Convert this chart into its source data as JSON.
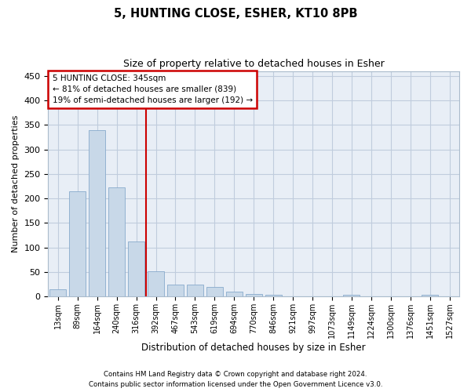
{
  "title": "5, HUNTING CLOSE, ESHER, KT10 8PB",
  "subtitle": "Size of property relative to detached houses in Esher",
  "xlabel": "Distribution of detached houses by size in Esher",
  "ylabel": "Number of detached properties",
  "footnote1": "Contains HM Land Registry data © Crown copyright and database right 2024.",
  "footnote2": "Contains public sector information licensed under the Open Government Licence v3.0.",
  "categories": [
    "13sqm",
    "89sqm",
    "164sqm",
    "240sqm",
    "316sqm",
    "392sqm",
    "467sqm",
    "543sqm",
    "619sqm",
    "694sqm",
    "770sqm",
    "846sqm",
    "921sqm",
    "997sqm",
    "1073sqm",
    "1149sqm",
    "1224sqm",
    "1300sqm",
    "1376sqm",
    "1451sqm",
    "1527sqm"
  ],
  "values": [
    15,
    215,
    340,
    222,
    112,
    51,
    25,
    25,
    20,
    10,
    5,
    3,
    1,
    0,
    0,
    4,
    0,
    0,
    0,
    3,
    0
  ],
  "bar_color": "#c8d8e8",
  "bar_edge_color": "#88aacc",
  "grid_color": "#c0ccdd",
  "background_color": "#e8eef6",
  "vline_color": "#cc0000",
  "annotation_line1": "5 HUNTING CLOSE: 345sqm",
  "annotation_line2": "← 81% of detached houses are smaller (839)",
  "annotation_line3": "19% of semi-detached houses are larger (192) →",
  "annotation_box_color": "#ffffff",
  "annotation_box_edge": "#cc0000",
  "ylim": [
    0,
    460
  ],
  "yticks": [
    0,
    50,
    100,
    150,
    200,
    250,
    300,
    350,
    400,
    450
  ],
  "title_fontsize": 10.5,
  "subtitle_fontsize": 9
}
